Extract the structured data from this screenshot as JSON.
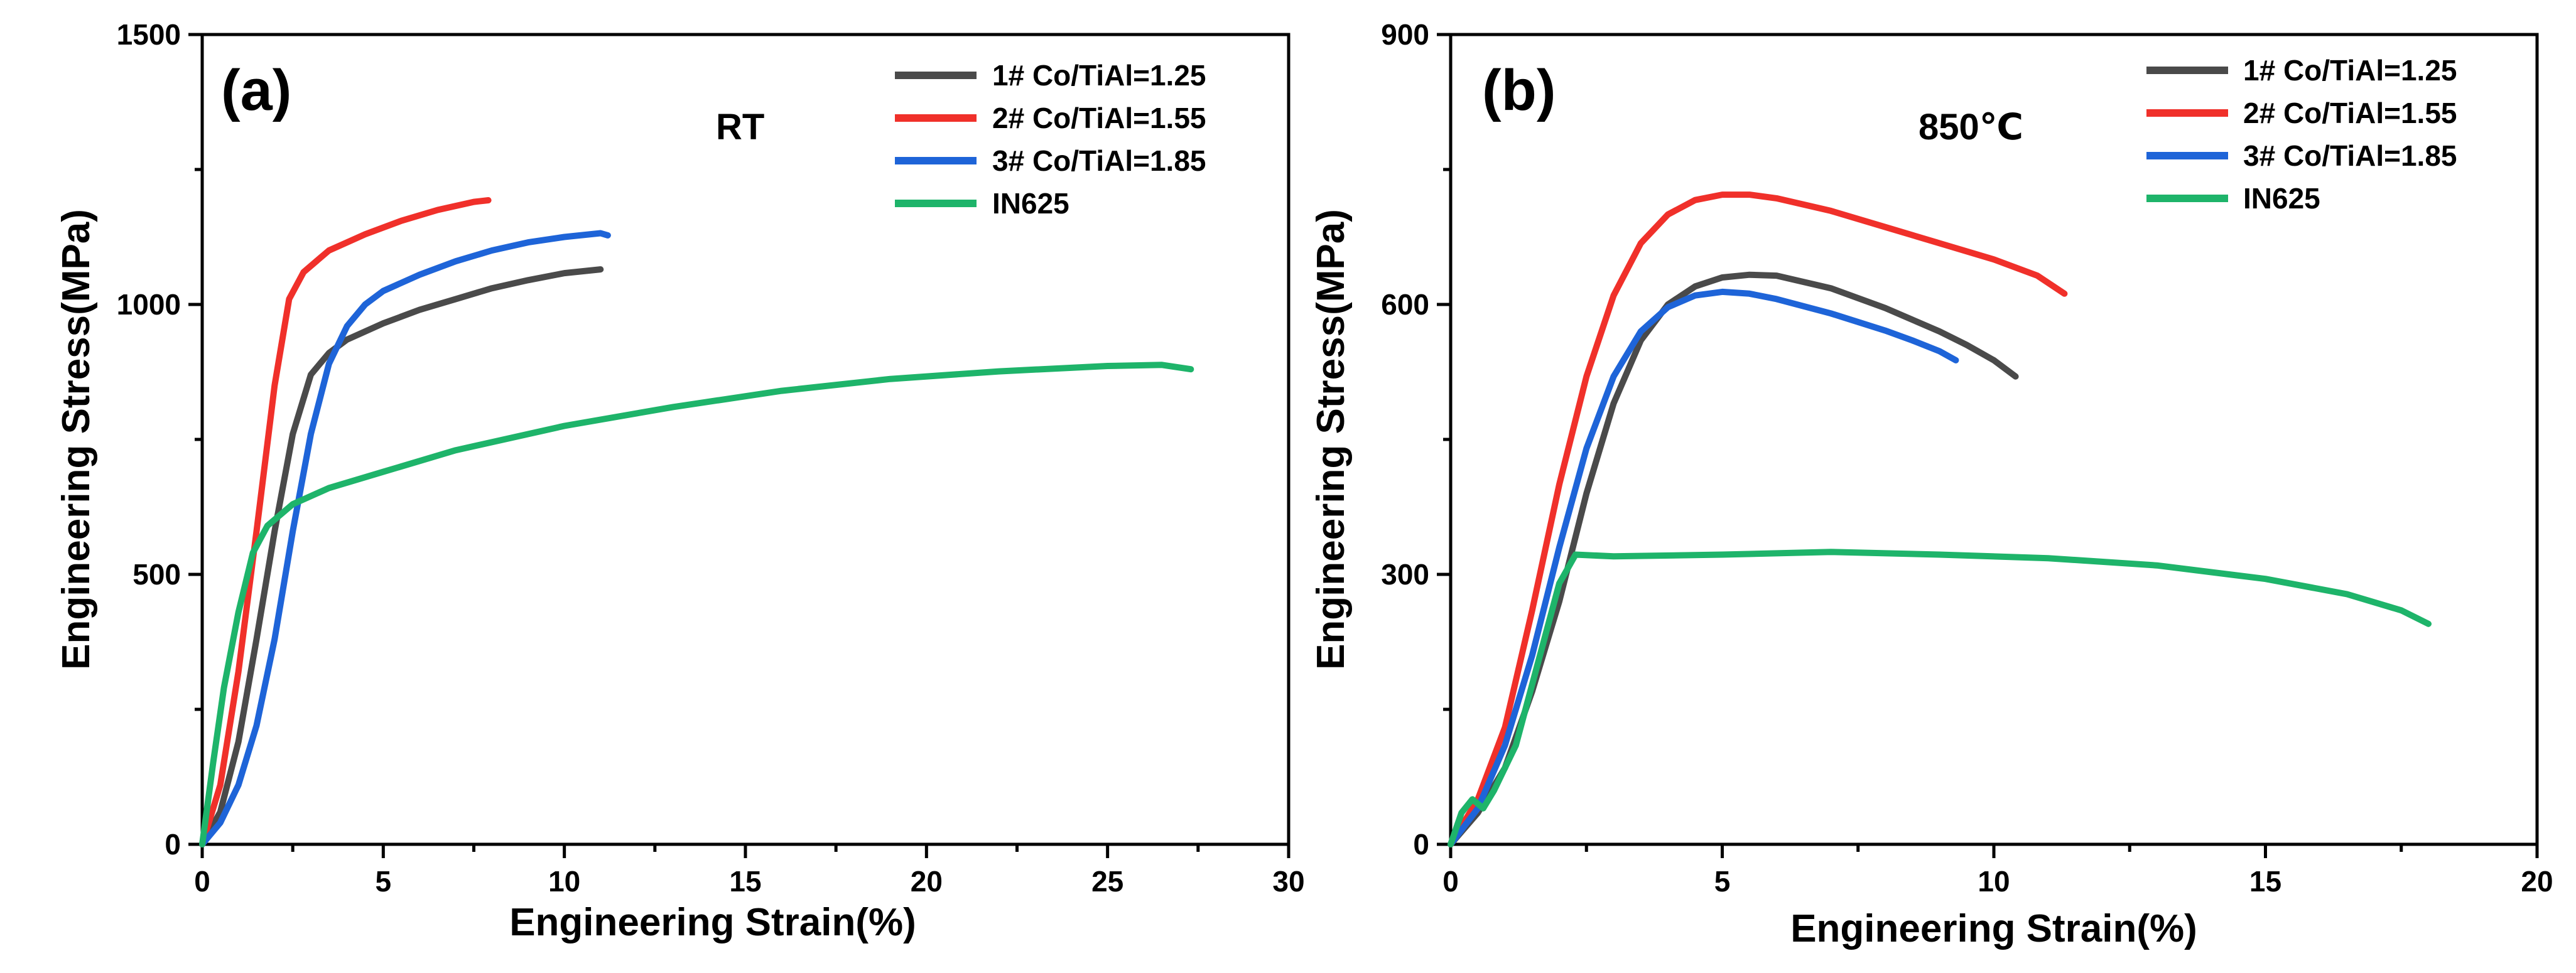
{
  "chart_data": [
    {
      "type": "line",
      "panel_label": "(a)",
      "annotation": "RT",
      "xlabel": "Engineering Strain(%)",
      "ylabel": "Engineering Stress(MPa)",
      "xlim": [
        0,
        30
      ],
      "ylim": [
        0,
        1500
      ],
      "xticks": [
        0,
        5,
        10,
        15,
        20,
        25,
        30
      ],
      "yticks": [
        0,
        500,
        1000,
        1500
      ],
      "legend_position": "top-right",
      "series": [
        {
          "name": "1# Co/TiAl=1.25",
          "color": "#4a4a4a",
          "points": [
            [
              0,
              0
            ],
            [
              0.5,
              60
            ],
            [
              1,
              190
            ],
            [
              1.5,
              380
            ],
            [
              2,
              580
            ],
            [
              2.5,
              760
            ],
            [
              3,
              870
            ],
            [
              3.5,
              910
            ],
            [
              4,
              935
            ],
            [
              5,
              965
            ],
            [
              6,
              990
            ],
            [
              7,
              1010
            ],
            [
              8,
              1030
            ],
            [
              9,
              1045
            ],
            [
              10,
              1058
            ],
            [
              11,
              1065
            ]
          ]
        },
        {
          "name": "2# Co/TiAl=1.55",
          "color": "#f0302a",
          "points": [
            [
              0,
              0
            ],
            [
              0.5,
              110
            ],
            [
              1,
              320
            ],
            [
              1.5,
              580
            ],
            [
              2,
              850
            ],
            [
              2.4,
              1010
            ],
            [
              2.8,
              1060
            ],
            [
              3.5,
              1100
            ],
            [
              4.5,
              1130
            ],
            [
              5.5,
              1155
            ],
            [
              6.5,
              1175
            ],
            [
              7.5,
              1190
            ],
            [
              7.9,
              1193
            ]
          ]
        },
        {
          "name": "3# Co/TiAl=1.85",
          "color": "#1e64d8",
          "points": [
            [
              0,
              0
            ],
            [
              0.5,
              40
            ],
            [
              1,
              110
            ],
            [
              1.5,
              220
            ],
            [
              2,
              380
            ],
            [
              2.5,
              580
            ],
            [
              3,
              760
            ],
            [
              3.5,
              890
            ],
            [
              4,
              960
            ],
            [
              4.5,
              1000
            ],
            [
              5,
              1025
            ],
            [
              6,
              1055
            ],
            [
              7,
              1080
            ],
            [
              8,
              1100
            ],
            [
              9,
              1115
            ],
            [
              10,
              1125
            ],
            [
              11,
              1132
            ],
            [
              11.2,
              1128
            ]
          ]
        },
        {
          "name": "IN625",
          "color": "#1eb46a",
          "points": [
            [
              0,
              0
            ],
            [
              0.3,
              150
            ],
            [
              0.6,
              290
            ],
            [
              1,
              430
            ],
            [
              1.4,
              540
            ],
            [
              1.8,
              590
            ],
            [
              2.5,
              630
            ],
            [
              3.5,
              660
            ],
            [
              5,
              690
            ],
            [
              7,
              730
            ],
            [
              10,
              775
            ],
            [
              13,
              810
            ],
            [
              16,
              840
            ],
            [
              19,
              862
            ],
            [
              22,
              876
            ],
            [
              25,
              886
            ],
            [
              26.5,
              888
            ],
            [
              27.3,
              880
            ]
          ]
        }
      ]
    },
    {
      "type": "line",
      "panel_label": "(b)",
      "annotation": "850℃",
      "xlabel": "Engineering Strain(%)",
      "ylabel": "Engineering Stress(MPa)",
      "xlim": [
        0,
        20
      ],
      "ylim": [
        0,
        900
      ],
      "xticks": [
        0,
        5,
        10,
        15,
        20
      ],
      "yticks": [
        0,
        300,
        600,
        900
      ],
      "legend_position": "top-right",
      "series": [
        {
          "name": "1# Co/TiAl=1.25",
          "color": "#4a4a4a",
          "points": [
            [
              0,
              0
            ],
            [
              0.5,
              35
            ],
            [
              1,
              85
            ],
            [
              1.5,
              170
            ],
            [
              2,
              270
            ],
            [
              2.5,
              390
            ],
            [
              3,
              490
            ],
            [
              3.5,
              560
            ],
            [
              4,
              600
            ],
            [
              4.5,
              620
            ],
            [
              5,
              630
            ],
            [
              5.5,
              633
            ],
            [
              6,
              632
            ],
            [
              7,
              618
            ],
            [
              8,
              596
            ],
            [
              9,
              570
            ],
            [
              9.5,
              555
            ],
            [
              10,
              538
            ],
            [
              10.4,
              520
            ]
          ]
        },
        {
          "name": "2# Co/TiAl=1.55",
          "color": "#f0302a",
          "points": [
            [
              0,
              0
            ],
            [
              0.5,
              50
            ],
            [
              1,
              130
            ],
            [
              1.5,
              260
            ],
            [
              2,
              400
            ],
            [
              2.5,
              520
            ],
            [
              3,
              610
            ],
            [
              3.5,
              668
            ],
            [
              4,
              700
            ],
            [
              4.5,
              716
            ],
            [
              5,
              722
            ],
            [
              5.5,
              722
            ],
            [
              6,
              718
            ],
            [
              7,
              704
            ],
            [
              8,
              686
            ],
            [
              9,
              668
            ],
            [
              10,
              650
            ],
            [
              10.8,
              632
            ],
            [
              11.3,
              612
            ]
          ]
        },
        {
          "name": "3# Co/TiAl=1.85",
          "color": "#1e64d8",
          "points": [
            [
              0,
              0
            ],
            [
              0.5,
              40
            ],
            [
              1,
              110
            ],
            [
              1.5,
              210
            ],
            [
              2,
              330
            ],
            [
              2.5,
              440
            ],
            [
              3,
              520
            ],
            [
              3.5,
              570
            ],
            [
              4,
              597
            ],
            [
              4.5,
              610
            ],
            [
              5,
              614
            ],
            [
              5.5,
              612
            ],
            [
              6,
              606
            ],
            [
              7,
              590
            ],
            [
              8,
              571
            ],
            [
              8.5,
              560
            ],
            [
              9,
              548
            ],
            [
              9.3,
              538
            ]
          ]
        },
        {
          "name": "IN625",
          "color": "#1eb46a",
          "points": [
            [
              0,
              0
            ],
            [
              0.2,
              35
            ],
            [
              0.4,
              50
            ],
            [
              0.6,
              40
            ],
            [
              0.8,
              60
            ],
            [
              1.2,
              110
            ],
            [
              1.6,
              200
            ],
            [
              2,
              290
            ],
            [
              2.3,
              322
            ],
            [
              3,
              320
            ],
            [
              5,
              322
            ],
            [
              7,
              325
            ],
            [
              9,
              322
            ],
            [
              11,
              318
            ],
            [
              13,
              310
            ],
            [
              15,
              295
            ],
            [
              16.5,
              278
            ],
            [
              17.5,
              260
            ],
            [
              18,
              245
            ]
          ]
        }
      ]
    }
  ]
}
